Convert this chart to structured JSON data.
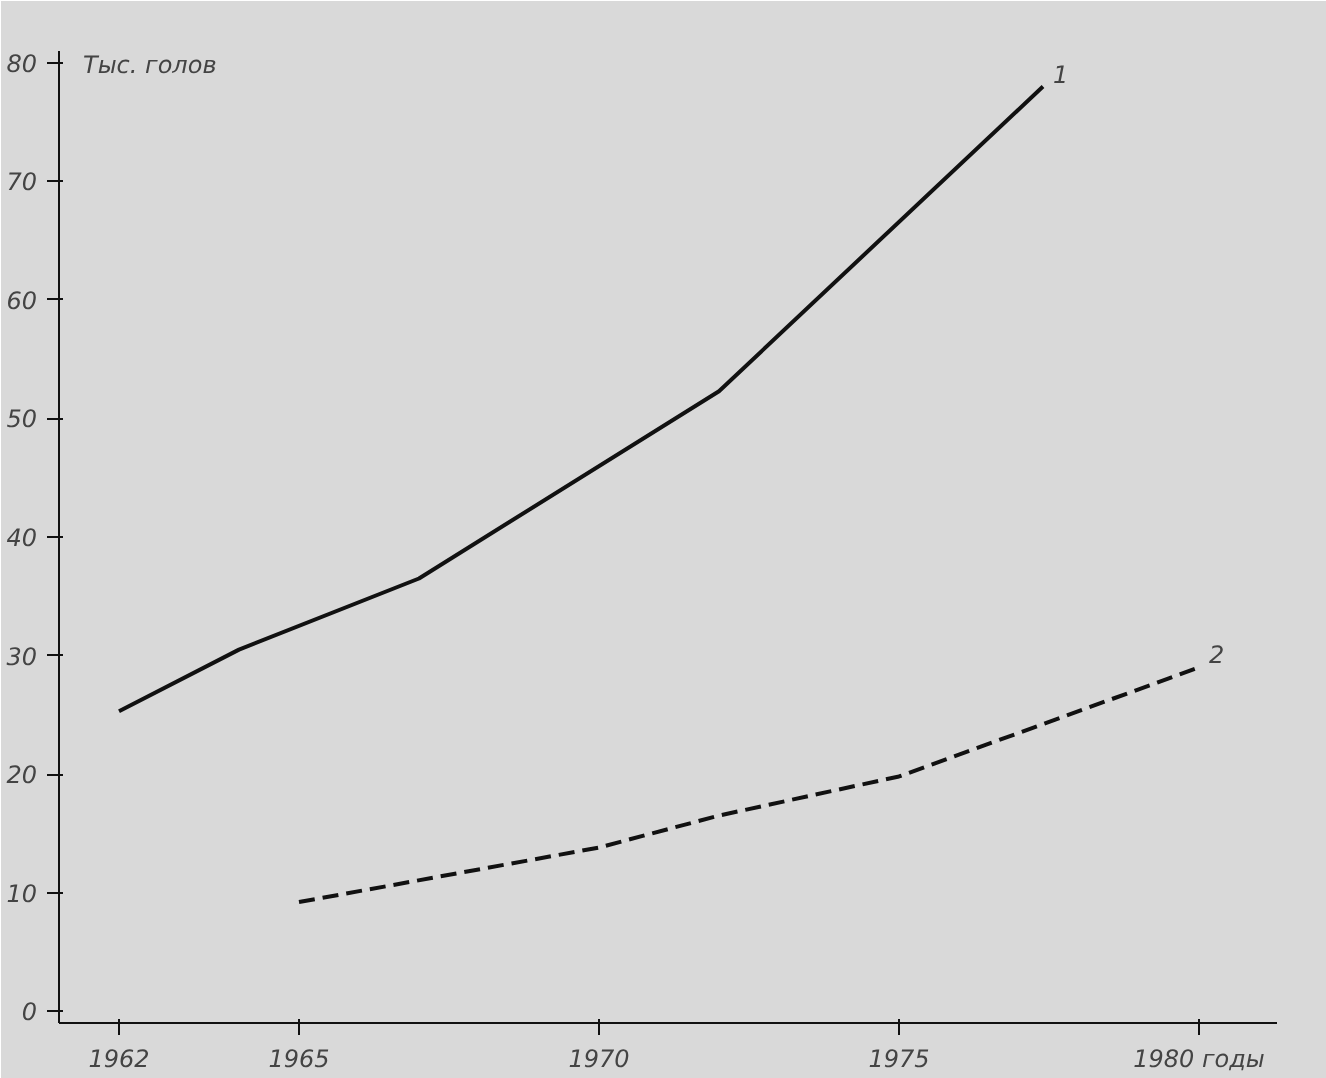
{
  "chart_data": {
    "type": "line",
    "ylabel": "Тыс. голов",
    "xlim": [
      1961,
      1981.3
    ],
    "ylim": [
      -1,
      81
    ],
    "xticks": [
      1962,
      1965,
      1970,
      1975,
      {
        "value": 1980,
        "label": "1980 годы"
      }
    ],
    "yticks": [
      0,
      10,
      20,
      30,
      40,
      50,
      60,
      70,
      80
    ],
    "grid": false,
    "marker": "none",
    "series": [
      {
        "name": "1",
        "color": "#111111",
        "line_style": "solid",
        "x": [
          1962,
          1964,
          1967,
          1972,
          1977.4
        ],
        "values": [
          25.3,
          30.5,
          36.5,
          52.3,
          78
        ]
      },
      {
        "name": "2",
        "color": "#111111",
        "line_style": "dashed",
        "x": [
          1965,
          1970,
          1972,
          1975,
          1980
        ],
        "values": [
          9.2,
          13.8,
          16.5,
          19.8,
          29
        ]
      }
    ]
  }
}
